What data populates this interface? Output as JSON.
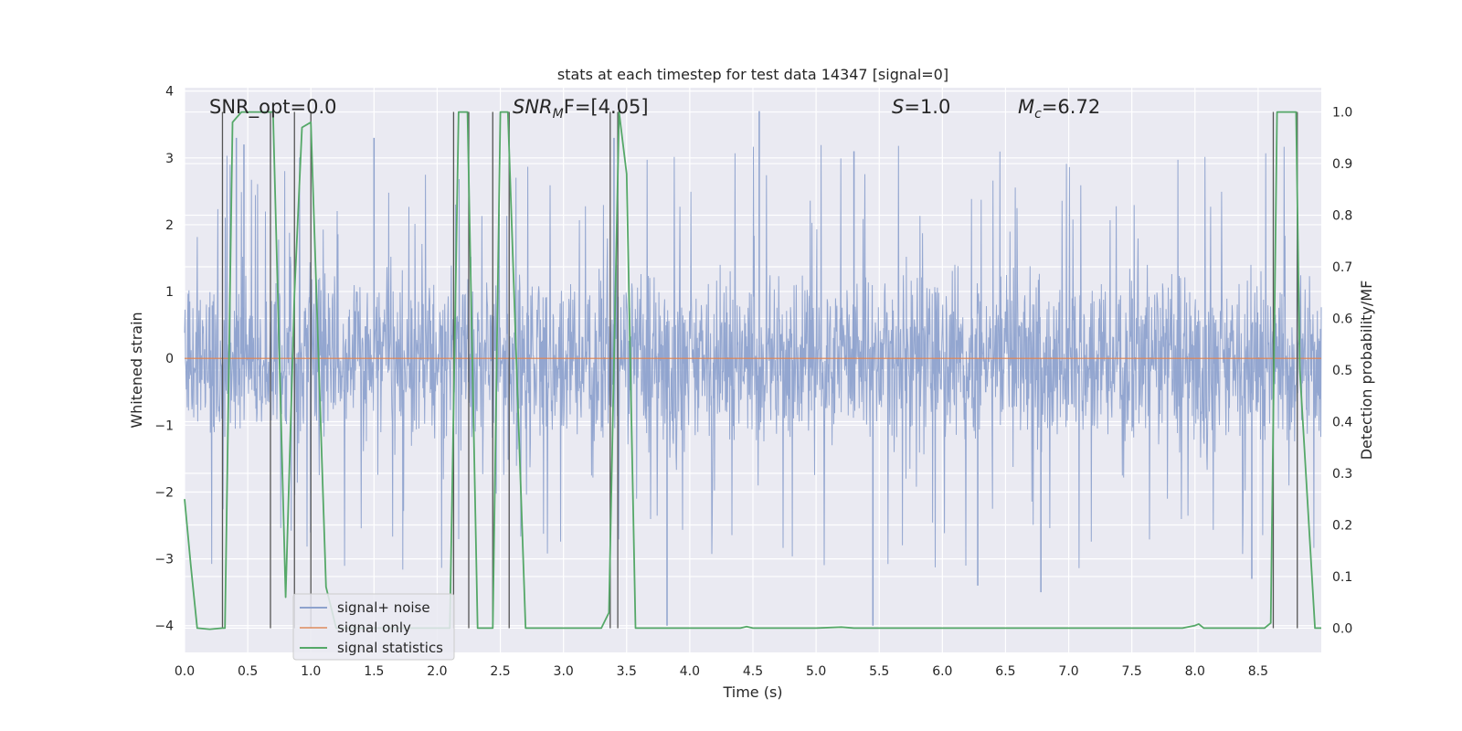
{
  "chart_data": {
    "type": "line",
    "title": "stats at each timestep for test data 14347 [signal=0]",
    "xlabel": "Time (s)",
    "ylabel": "Whitened strain",
    "y2label": "Detection probability/MF",
    "xlim": [
      0.0,
      9.0
    ],
    "ylim": [
      -4.4,
      4.05
    ],
    "y2lim": [
      -0.047,
      1.047
    ],
    "xticks": [
      "0.0",
      "0.5",
      "1.0",
      "1.5",
      "2.0",
      "2.5",
      "3.0",
      "3.5",
      "4.0",
      "4.5",
      "5.0",
      "5.5",
      "6.0",
      "6.5",
      "7.0",
      "7.5",
      "8.0",
      "8.5"
    ],
    "yticks": [
      "4",
      "3",
      "2",
      "1",
      "0",
      "−1",
      "−2",
      "−3",
      "−4"
    ],
    "y2ticks": [
      "1.0",
      "0.9",
      "0.8",
      "0.7",
      "0.6",
      "0.5",
      "0.4",
      "0.3",
      "0.2",
      "0.1",
      "0.0"
    ],
    "legend_position": "lower-left",
    "grid": true,
    "colors": {
      "background": "#eaeaf2",
      "grid": "#ffffff",
      "noise": "#8ea2cd",
      "signal_only": "#dd8452",
      "statistics": "#55a868",
      "marker_lines": "#555555"
    },
    "annotations": {
      "snr_opt": "SNR_opt=0.0",
      "snr_mf_main": "SNR",
      "snr_mf_sub": "M",
      "snr_mf_rest": "F=[4.05]",
      "s_var": "S",
      "s_val": "=1.0",
      "mc_var": "M",
      "mc_sub": "c",
      "mc_val": "=6.72"
    },
    "series": [
      {
        "name": "signal+ noise",
        "axis": "left",
        "description": "whitened noise, roughly ±1.6 sigma band with spikes to about ±3.7",
        "noise_envelope": {
          "band": 1.6,
          "max_positive_peak": 3.7,
          "min_negative_peak": -4.0
        },
        "notable_spikes": [
          {
            "x": 0.41,
            "y": 3.3
          },
          {
            "x": 0.47,
            "y": 3.2
          },
          {
            "x": 1.5,
            "y": 3.3
          },
          {
            "x": 3.4,
            "y": 3.3
          },
          {
            "x": 4.55,
            "y": 3.7
          },
          {
            "x": 5.3,
            "y": 3.1
          },
          {
            "x": 3.82,
            "y": -4.0
          },
          {
            "x": 5.45,
            "y": -4.0
          },
          {
            "x": 6.28,
            "y": -3.4
          },
          {
            "x": 6.78,
            "y": -3.5
          },
          {
            "x": 8.45,
            "y": -3.3
          }
        ]
      },
      {
        "name": "signal only",
        "axis": "left",
        "x": [
          0.0,
          9.0
        ],
        "y": [
          0.0,
          0.0
        ]
      },
      {
        "name": "signal statistics",
        "axis": "right",
        "x": [
          0.0,
          0.05,
          0.1,
          0.2,
          0.3,
          0.32,
          0.38,
          0.45,
          0.7,
          0.8,
          0.87,
          0.93,
          1.0,
          1.12,
          1.2,
          1.3,
          1.9,
          2.0,
          2.1,
          2.17,
          2.24,
          2.32,
          2.44,
          2.5,
          2.56,
          2.7,
          3.0,
          3.3,
          3.36,
          3.44,
          3.5,
          3.57,
          3.6,
          4.0,
          4.4,
          4.45,
          4.5,
          5.0,
          5.2,
          5.3,
          6.0,
          7.0,
          7.9,
          8.0,
          8.03,
          8.07,
          8.2,
          8.3,
          8.55,
          8.6,
          8.65,
          8.7,
          8.8,
          8.83,
          8.95,
          9.0
        ],
        "y": [
          0.25,
          0.12,
          0.0,
          -0.002,
          0.0,
          0.0,
          0.98,
          1.0,
          1.0,
          0.06,
          0.65,
          0.97,
          0.98,
          0.08,
          0.0,
          0.0,
          0.0,
          0.0,
          0.0,
          1.0,
          1.0,
          0.0,
          0.0,
          1.0,
          1.0,
          0.0,
          0.0,
          0.0,
          0.03,
          1.0,
          0.88,
          0.0,
          0.0,
          0.0,
          0.0,
          0.003,
          0.0,
          0.0,
          0.002,
          0.0,
          0.0,
          0.0,
          0.0,
          0.005,
          0.008,
          0.0,
          0.0,
          0.0,
          0.0,
          0.01,
          1.0,
          1.0,
          1.0,
          0.5,
          0.0,
          0.0
        ]
      }
    ],
    "vertical_markers_x": [
      0.3,
      0.68,
      0.87,
      1.0,
      2.13,
      2.25,
      2.44,
      2.57,
      3.37,
      3.43,
      8.62,
      8.81
    ],
    "legend": [
      {
        "label": "signal+ noise",
        "color": "#8ea2cd"
      },
      {
        "label": "signal only",
        "color": "#dd8452"
      },
      {
        "label": "signal statistics",
        "color": "#55a868"
      }
    ]
  }
}
